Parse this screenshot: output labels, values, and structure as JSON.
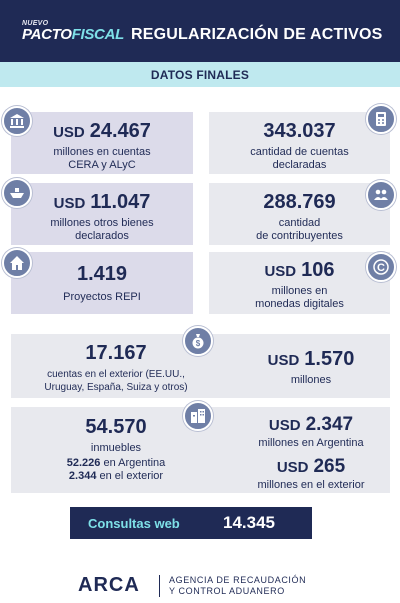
{
  "header": {
    "logo_small": "NUEVO",
    "logo_main_a": "PACTO",
    "logo_main_b": "FISCAL",
    "title": "REGULARIZACIÓN DE ACTIVOS"
  },
  "band": {
    "title": "DATOS FINALES"
  },
  "cards": {
    "cera": {
      "currency": "USD",
      "value": "24.467",
      "line1": "millones en cuentas",
      "line2": "CERA y ALyC",
      "icon": "bank-icon"
    },
    "accounts": {
      "value": "343.037",
      "line1": "cantidad de cuentas",
      "line2": "declaradas",
      "icon": "calculator-icon"
    },
    "other_assets": {
      "currency": "USD",
      "value": "11.047",
      "line1": "millones otros bienes",
      "line2": "declarados",
      "icon": "ship-icon"
    },
    "taxpayers": {
      "value": "288.769",
      "line1": "cantidad",
      "line2": "de contribuyentes",
      "icon": "people-icon"
    },
    "repi": {
      "value": "1.419",
      "line1": "Proyectos REPI",
      "icon": "house-icon"
    },
    "digital": {
      "currency": "USD",
      "value": "106",
      "line1": "millones en",
      "line2": "monedas digitales",
      "icon": "coin-icon"
    },
    "foreign_accounts": {
      "value": "17.167",
      "line1": "cuentas en el exterior (EE.UU.,",
      "line2": "Uruguay, España, Suiza y otros)",
      "icon": "money-bag-icon"
    },
    "foreign_amount": {
      "currency": "USD",
      "value": "1.570",
      "line1": "millones"
    },
    "real_estate": {
      "value": "54.570",
      "line1": "inmuebles",
      "ar_value": "52.226",
      "ar_label": "en Argentina",
      "ext_value": "2.344",
      "ext_label": "en el exterior",
      "icon": "buildings-icon"
    },
    "real_estate_ar": {
      "currency": "USD",
      "value": "2.347",
      "line1": "millones en Argentina"
    },
    "real_estate_ext": {
      "currency": "USD",
      "value": "265",
      "line1": "millones en el exterior"
    }
  },
  "web": {
    "label": "Consultas web",
    "value": "14.345"
  },
  "footer": {
    "brand": "ARCA",
    "agency_line1": "AGENCIA DE RECAUDACIÓN",
    "agency_line2": "Y CONTROL ADUANERO"
  },
  "colors": {
    "navy": "#1f2a55",
    "cyan": "#7ee0e8",
    "band": "#bfe9ef",
    "lavender": "#dcdbea",
    "gray": "#e8e9ee",
    "icon": "#6f7fa6"
  }
}
